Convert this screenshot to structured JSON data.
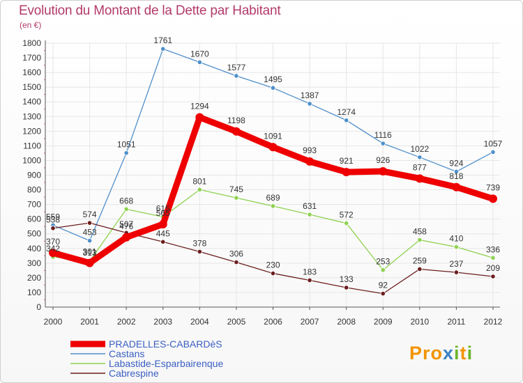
{
  "chart_data": {
    "type": "line",
    "title": "Evolution du Montant de la Dette par Habitant",
    "subtitle": "(en €)",
    "x": [
      "2000",
      "2001",
      "2002",
      "2003",
      "2004",
      "2005",
      "2006",
      "2007",
      "2008",
      "2009",
      "2010",
      "2011",
      "2012"
    ],
    "ylim": [
      0,
      1800
    ],
    "yticks": [
      0,
      100,
      200,
      300,
      400,
      500,
      600,
      700,
      800,
      900,
      1000,
      1100,
      1200,
      1300,
      1400,
      1500,
      1600,
      1700,
      1800
    ],
    "grid": true,
    "legend_position": "bottom-left",
    "series": [
      {
        "name": "PRADELLES-CABARDèS",
        "color": "#ee0000",
        "values": [
          370,
          301,
          476,
          565,
          1294,
          1198,
          1091,
          993,
          921,
          926,
          877,
          818,
          739
        ]
      },
      {
        "name": "Castans",
        "color": "#4f8fca",
        "values": [
          559,
          453,
          1051,
          1761,
          1670,
          1577,
          1495,
          1387,
          1274,
          1116,
          1022,
          924,
          1057
        ]
      },
      {
        "name": "Labastide-Esparbairenque",
        "color": "#8fd14f",
        "values": [
          342,
          313,
          668,
          615,
          801,
          745,
          689,
          631,
          572,
          253,
          458,
          410,
          336
        ]
      },
      {
        "name": "Cabrespine",
        "color": "#6b1d1d",
        "values": [
          538,
          574,
          507,
          445,
          378,
          306,
          230,
          183,
          133,
          92,
          259,
          237,
          209
        ]
      }
    ]
  },
  "logo": {
    "text": "Proxiti"
  }
}
